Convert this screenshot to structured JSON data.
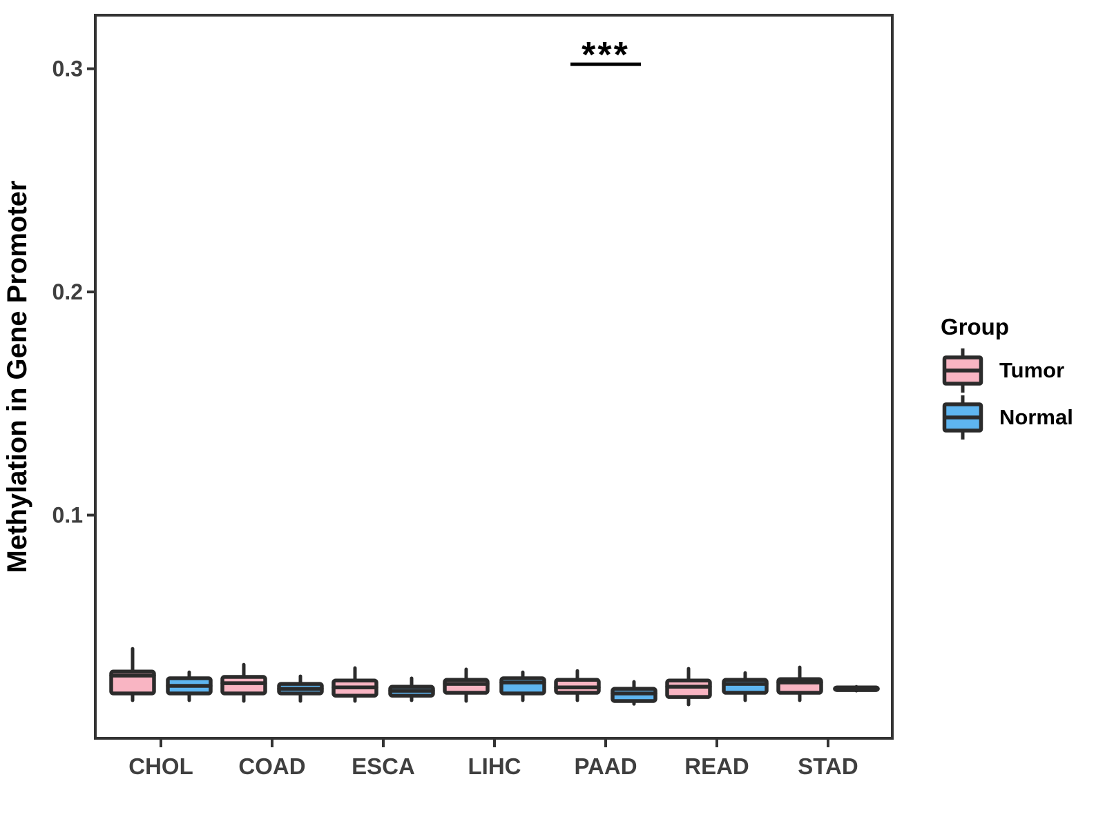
{
  "chart_data": {
    "type": "boxplot",
    "title": "",
    "xlabel": "",
    "ylabel": "Methylation in Gene Promoter",
    "categories": [
      "CHOL",
      "COAD",
      "ESCA",
      "LIHC",
      "PAAD",
      "READ",
      "STAD"
    ],
    "groups": [
      {
        "name": "Tumor",
        "color": "#F9B5C3"
      },
      {
        "name": "Normal",
        "color": "#5EB5F0"
      }
    ],
    "ylim": [
      0,
      0.324
    ],
    "y_ticks": [
      0.1,
      0.2,
      0.3
    ],
    "y_tick_labels": [
      "0.1",
      "0.2",
      "0.3"
    ],
    "grid": false,
    "legend_position": "right",
    "legend": {
      "title": "Group"
    },
    "boxes": [
      {
        "category": "CHOL",
        "group": "Tumor",
        "min": 0.017,
        "q1": 0.0201,
        "median": 0.0281,
        "q3": 0.0299,
        "max": 0.0401
      },
      {
        "category": "CHOL",
        "group": "Normal",
        "min": 0.017,
        "q1": 0.0201,
        "median": 0.0235,
        "q3": 0.0269,
        "max": 0.0296
      },
      {
        "category": "COAD",
        "group": "Tumor",
        "min": 0.0167,
        "q1": 0.0201,
        "median": 0.0247,
        "q3": 0.0275,
        "max": 0.033
      },
      {
        "category": "COAD",
        "group": "Normal",
        "min": 0.0167,
        "q1": 0.0201,
        "median": 0.0222,
        "q3": 0.0244,
        "max": 0.0278
      },
      {
        "category": "ESCA",
        "group": "Tumor",
        "min": 0.0167,
        "q1": 0.0191,
        "median": 0.0228,
        "q3": 0.0259,
        "max": 0.0315
      },
      {
        "category": "ESCA",
        "group": "Normal",
        "min": 0.017,
        "q1": 0.0191,
        "median": 0.0213,
        "q3": 0.0231,
        "max": 0.0269
      },
      {
        "category": "LIHC",
        "group": "Tumor",
        "min": 0.0167,
        "q1": 0.0204,
        "median": 0.0244,
        "q3": 0.0262,
        "max": 0.0309
      },
      {
        "category": "LIHC",
        "group": "Normal",
        "min": 0.017,
        "q1": 0.0201,
        "median": 0.025,
        "q3": 0.0269,
        "max": 0.0296
      },
      {
        "category": "PAAD",
        "group": "Tumor",
        "min": 0.017,
        "q1": 0.0204,
        "median": 0.0228,
        "q3": 0.0262,
        "max": 0.0302
      },
      {
        "category": "PAAD",
        "group": "Normal",
        "min": 0.0154,
        "q1": 0.0167,
        "median": 0.0201,
        "q3": 0.0222,
        "max": 0.0253
      },
      {
        "category": "READ",
        "group": "Tumor",
        "min": 0.0151,
        "q1": 0.0185,
        "median": 0.0231,
        "q3": 0.0259,
        "max": 0.0312
      },
      {
        "category": "READ",
        "group": "Normal",
        "min": 0.017,
        "q1": 0.0204,
        "median": 0.0244,
        "q3": 0.0262,
        "max": 0.0293
      },
      {
        "category": "STAD",
        "group": "Tumor",
        "min": 0.017,
        "q1": 0.0204,
        "median": 0.025,
        "q3": 0.0265,
        "max": 0.0318
      },
      {
        "category": "STAD",
        "group": "Normal",
        "min": 0.0213,
        "q1": 0.0216,
        "median": 0.0222,
        "q3": 0.0228,
        "max": 0.0231
      }
    ],
    "significance": [
      {
        "category": "PAAD",
        "label": "***",
        "bar_y": 0.302
      }
    ]
  },
  "styles": {
    "box_border": "#2b2b2b",
    "axis_color": "#333333",
    "tick_label_color": "#3f3f3f",
    "text_color": "#000000",
    "background": "#ffffff"
  }
}
